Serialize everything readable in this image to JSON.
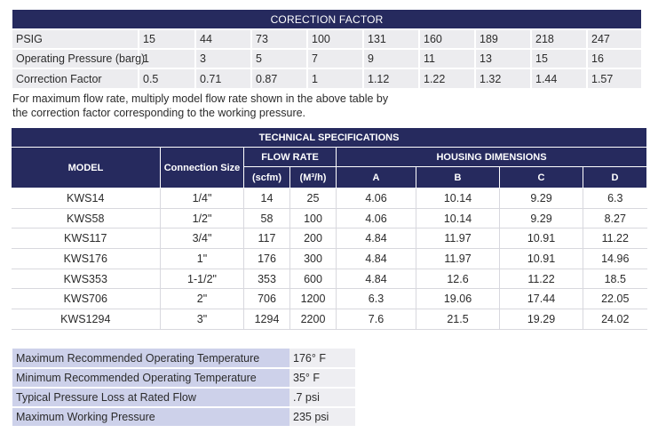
{
  "correction_factor": {
    "title": "CORECTION FACTOR",
    "rows": [
      {
        "label": "PSIG",
        "values": [
          "15",
          "44",
          "73",
          "100",
          "131",
          "160",
          "189",
          "218",
          "247"
        ]
      },
      {
        "label": "Operating Pressure (barg)",
        "values": [
          "1",
          "3",
          "5",
          "7",
          "9",
          "11",
          "13",
          "15",
          "16"
        ]
      },
      {
        "label": "Correction Factor",
        "values": [
          "0.5",
          "0.71",
          "0.87",
          "1",
          "1.12",
          "1.22",
          "1.32",
          "1.44",
          "1.57"
        ]
      }
    ]
  },
  "note": "For maximum flow rate, multiply model flow rate shown in the above table by the correction factor corresponding to the working pressure.",
  "technical_specifications": {
    "title": "TECHNICAL SPECIFICATIONS",
    "headers": {
      "model": "MODEL",
      "connection_size": "Connection Size",
      "flow_rate": "FLOW RATE",
      "scfm": "(scfm)",
      "m3h": "(M³/h)",
      "housing_dimensions": "HOUSING DIMENSIONS",
      "a": "A",
      "b": "B",
      "c": "C",
      "d": "D"
    },
    "rows": [
      [
        "KWS14",
        "1/4\"",
        "14",
        "25",
        "4.06",
        "10.14",
        "9.29",
        "6.3"
      ],
      [
        "KWS58",
        "1/2\"",
        "58",
        "100",
        "4.06",
        "10.14",
        "9.29",
        "8.27"
      ],
      [
        "KWS117",
        "3/4\"",
        "117",
        "200",
        "4.84",
        "11.97",
        "10.91",
        "11.22"
      ],
      [
        "KWS176",
        "1\"",
        "176",
        "300",
        "4.84",
        "11.97",
        "10.91",
        "14.96"
      ],
      [
        "KWS353",
        "1-1/2\"",
        "353",
        "600",
        "4.84",
        "12.6",
        "11.22",
        "18.5"
      ],
      [
        "KWS706",
        "2\"",
        "706",
        "1200",
        "6.3",
        "19.06",
        "17.44",
        "22.05"
      ],
      [
        "KWS1294",
        "3\"",
        "1294",
        "2200",
        "7.6",
        "21.5",
        "19.29",
        "24.02"
      ]
    ]
  },
  "operating_conditions": [
    {
      "label": "Maximum Recommended Operating Temperature",
      "value": "176° F"
    },
    {
      "label": "Minimum Recommended Operating Temperature",
      "value": "35° F"
    },
    {
      "label": "Typical Pressure Loss at Rated Flow",
      "value": ".7 psi"
    },
    {
      "label": "Maximum Working Pressure",
      "value": "235 psi"
    }
  ],
  "colors": {
    "header_bg": "#262a5e",
    "cell_bg": "#ececef",
    "label_bg": "#cdd1ea"
  }
}
